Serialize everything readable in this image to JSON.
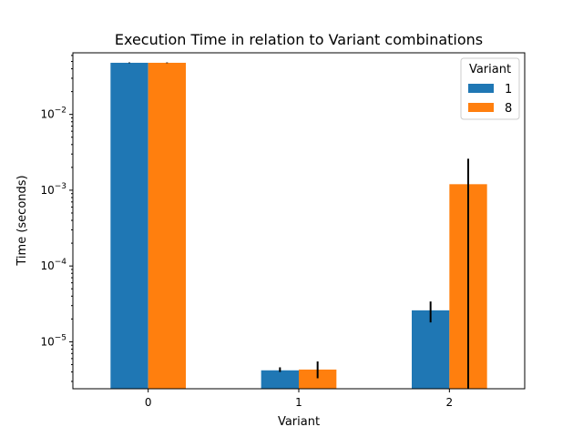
{
  "chart_data": {
    "type": "bar",
    "title": "Execution Time in relation to Variant combinations",
    "xlabel": "Variant",
    "ylabel": "Time (seconds)",
    "yscale": "log",
    "ylim": [
      2.4e-06,
      0.065
    ],
    "categories": [
      "0",
      "1",
      "2"
    ],
    "series": [
      {
        "name": "1",
        "color": "#1f77b4",
        "values": [
          0.048,
          4.2e-06,
          2.6e-05
        ],
        "error_low": [
          0.0475,
          4e-06,
          1.8e-05
        ],
        "error_high": [
          0.0485,
          4.6e-06,
          3.4e-05
        ]
      },
      {
        "name": "8",
        "color": "#ff7f0e",
        "values": [
          0.048,
          4.3e-06,
          0.0012
        ],
        "error_low": [
          0.0475,
          3.3e-06,
          2.4e-06
        ],
        "error_high": [
          0.0485,
          5.5e-06,
          0.0026
        ]
      }
    ],
    "yticks": [
      {
        "value": 1e-05,
        "base": "10",
        "exp": "−5"
      },
      {
        "value": 0.0001,
        "base": "10",
        "exp": "−4"
      },
      {
        "value": 0.001,
        "base": "10",
        "exp": "−3"
      },
      {
        "value": 0.01,
        "base": "10",
        "exp": "−2"
      }
    ],
    "legend": {
      "title": "Variant",
      "placement": "top-right"
    },
    "grid": false
  }
}
